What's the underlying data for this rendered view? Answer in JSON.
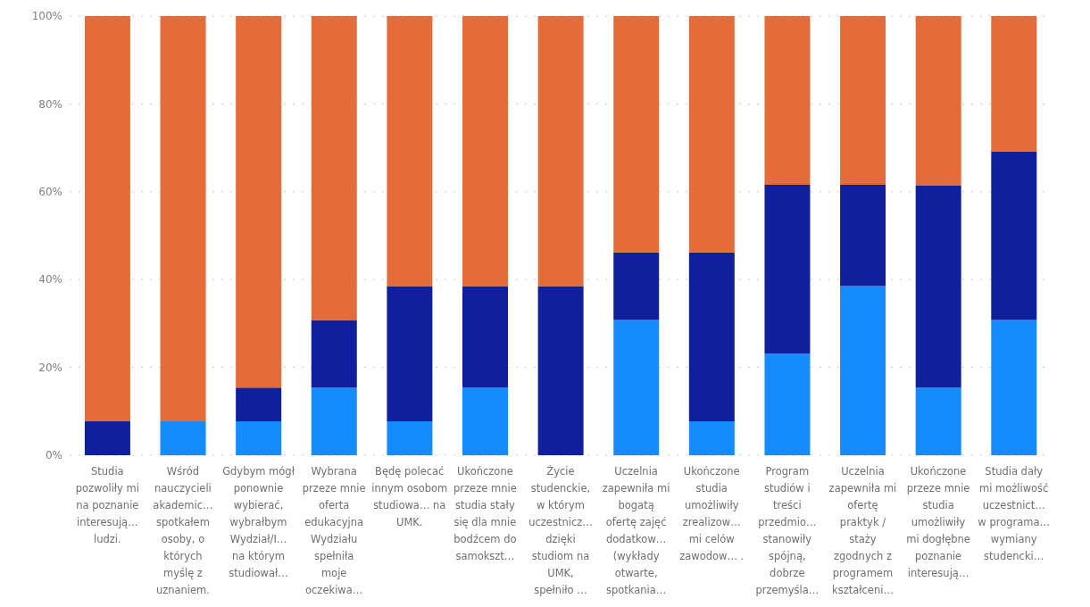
{
  "chart_data": {
    "type": "bar",
    "stacked": true,
    "categories": [
      "Studia pozwoliły mi na poznanie interesują… ludzi.",
      "Wśród nauczycieli akademic… spotkałem osoby, o których myślę z uznaniem.",
      "Gdybym mógł ponownie wybierać, wybrałbym Wydział/I… na którym studiował…",
      "Wybrana przeze mnie oferta edukacyjna Wydziału spełniła moje oczekiwa…",
      "Będę polecać innym osobom studiowa… na UMK.",
      "Ukończone przeze mnie studia stały się dla mnie bodźcem do samokszt…",
      "Życie studenckie, w którym uczestnicz… dzięki studiom na UMK, spełniło …",
      "Uczelnia zapewniła mi bogatą ofertę zajęć dodatkow… (wykłady otwarte, spotkania…",
      "Ukończone studia umożliwiły zrealizow… mi celów zawodow… .",
      "Program studiów i treści przedmio… stanowiły spójną, dobrze przemyśla…",
      "Uczelnia zapewniła mi ofertę praktyk / staży zgodnych z programem kształceni…",
      "Ukończone przeze mnie studia umożliwiły mi dogłębne poznanie interesują…",
      "Studia dały mi możliwość uczestnict… w programa… wymiany studencki…"
    ],
    "series": [
      {
        "color": "#148cfc",
        "values": [
          0,
          7.7,
          7.7,
          15.4,
          7.7,
          15.4,
          0,
          30.8,
          7.7,
          23.1,
          38.5,
          15.4,
          30.8
        ]
      },
      {
        "color": "#10209c",
        "values": [
          7.7,
          0,
          7.7,
          15.4,
          30.8,
          23.1,
          38.5,
          15.4,
          38.5,
          38.5,
          23.1,
          46.1,
          38.4
        ]
      },
      {
        "color": "#e46c38",
        "values": [
          92.3,
          92.3,
          84.6,
          69.2,
          61.5,
          61.5,
          61.5,
          53.8,
          53.8,
          38.4,
          38.4,
          38.5,
          30.8
        ]
      }
    ],
    "ylim": [
      0,
      100
    ],
    "yticks": [
      {
        "value": 0,
        "label": "0%"
      },
      {
        "value": 20,
        "label": "20%"
      },
      {
        "value": 40,
        "label": "40%"
      },
      {
        "value": 60,
        "label": "60%"
      },
      {
        "value": 80,
        "label": "80%"
      },
      {
        "value": 100,
        "label": "100%"
      }
    ],
    "grid": "y",
    "legend": false
  }
}
